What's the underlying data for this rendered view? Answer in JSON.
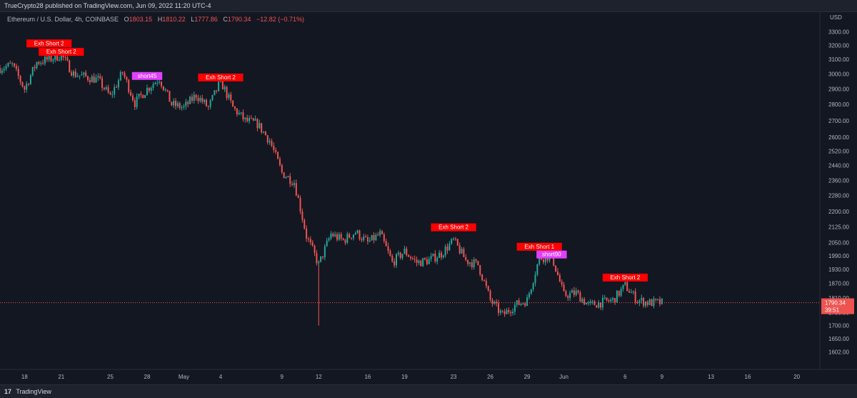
{
  "header": {
    "published_text": "TrueCrypto28 published on TradingView.com, Jun 09, 2022 11:20 UTC-4"
  },
  "symbol": {
    "name": "Ethereum / U.S. Dollar, 4h, COINBASE",
    "open_label": "O",
    "open_value": "1803.15",
    "high_label": "H",
    "high_value": "1810.22",
    "low_label": "L",
    "low_value": "1777.86",
    "close_label": "C",
    "close_value": "1790.34",
    "change": "−12.82 (−0.71%)"
  },
  "footer": {
    "brand": "TradingView",
    "logo_glyph": "17"
  },
  "colors": {
    "background": "#131722",
    "up": "#26a69a",
    "down": "#ef5350",
    "exh_label": "#ff0000",
    "short_label": "#e040fb",
    "price_line": "#ef5350"
  },
  "chart_data": {
    "type": "candlestick",
    "title": "Ethereum / U.S. Dollar, 4h, COINBASE",
    "currency_label": "USD",
    "y_scale": "log",
    "ylim": [
      1560,
      3350
    ],
    "y_ticks": [
      "3300.00",
      "3200.00",
      "3100.00",
      "3000.00",
      "2900.00",
      "2800.00",
      "2700.00",
      "2600.00",
      "2520.00",
      "2440.00",
      "2360.00",
      "2280.00",
      "2200.00",
      "2125.00",
      "2050.00",
      "1990.00",
      "1930.00",
      "1870.00",
      "1810.00",
      "1750.00",
      "1700.00",
      "1650.00",
      "1602.00"
    ],
    "x_ticks": [
      "18",
      "21",
      "25",
      "28",
      "May",
      "4",
      "9",
      "12",
      "16",
      "19",
      "23",
      "26",
      "29",
      "Jun",
      "6",
      "9",
      "13",
      "16",
      "20"
    ],
    "x_range": [
      "2022-04-16",
      "2022-06-22"
    ],
    "x_tick_dates": [
      "2022-04-18",
      "2022-04-21",
      "2022-04-25",
      "2022-04-28",
      "2022-05-01",
      "2022-05-04",
      "2022-05-09",
      "2022-05-12",
      "2022-05-16",
      "2022-05-19",
      "2022-05-23",
      "2022-05-26",
      "2022-05-29",
      "2022-06-01",
      "2022-06-06",
      "2022-06-09",
      "2022-06-13",
      "2022-06-16",
      "2022-06-20"
    ],
    "current_price": {
      "value": "1790.34",
      "countdown": "39:51"
    },
    "price_path": [
      {
        "date": "2022-04-16",
        "price": 3040
      },
      {
        "date": "2022-04-17",
        "price": 3060
      },
      {
        "date": "2022-04-18",
        "price": 2900
      },
      {
        "date": "2022-04-19",
        "price": 3080
      },
      {
        "date": "2022-04-20",
        "price": 3100
      },
      {
        "date": "2022-04-21",
        "price": 3130
      },
      {
        "date": "2022-04-22",
        "price": 3000
      },
      {
        "date": "2022-04-23",
        "price": 2980
      },
      {
        "date": "2022-04-24",
        "price": 2960
      },
      {
        "date": "2022-04-25",
        "price": 2850
      },
      {
        "date": "2022-04-26",
        "price": 3010
      },
      {
        "date": "2022-04-27",
        "price": 2810
      },
      {
        "date": "2022-04-28",
        "price": 2900
      },
      {
        "date": "2022-04-29",
        "price": 2970
      },
      {
        "date": "2022-04-30",
        "price": 2800
      },
      {
        "date": "2022-05-01",
        "price": 2780
      },
      {
        "date": "2022-05-02",
        "price": 2860
      },
      {
        "date": "2022-05-03",
        "price": 2780
      },
      {
        "date": "2022-05-04",
        "price": 2950
      },
      {
        "date": "2022-05-05",
        "price": 2780
      },
      {
        "date": "2022-05-06",
        "price": 2700
      },
      {
        "date": "2022-05-07",
        "price": 2680
      },
      {
        "date": "2022-05-08",
        "price": 2580
      },
      {
        "date": "2022-05-09",
        "price": 2400
      },
      {
        "date": "2022-05-10",
        "price": 2350
      },
      {
        "date": "2022-05-11",
        "price": 2080
      },
      {
        "date": "2022-05-12",
        "price": 1950
      },
      {
        "date": "2022-05-13",
        "price": 2090
      },
      {
        "date": "2022-05-14",
        "price": 2060
      },
      {
        "date": "2022-05-15",
        "price": 2100
      },
      {
        "date": "2022-05-16",
        "price": 2050
      },
      {
        "date": "2022-05-17",
        "price": 2090
      },
      {
        "date": "2022-05-18",
        "price": 1960
      },
      {
        "date": "2022-05-19",
        "price": 2010
      },
      {
        "date": "2022-05-20",
        "price": 1960
      },
      {
        "date": "2022-05-21",
        "price": 1970
      },
      {
        "date": "2022-05-22",
        "price": 2000
      },
      {
        "date": "2022-05-23",
        "price": 2060
      },
      {
        "date": "2022-05-24",
        "price": 1970
      },
      {
        "date": "2022-05-25",
        "price": 1950
      },
      {
        "date": "2022-05-26",
        "price": 1800
      },
      {
        "date": "2022-05-27",
        "price": 1740
      },
      {
        "date": "2022-05-28",
        "price": 1780
      },
      {
        "date": "2022-05-29",
        "price": 1800
      },
      {
        "date": "2022-05-30",
        "price": 1980
      },
      {
        "date": "2022-05-31",
        "price": 1990
      },
      {
        "date": "2022-06-01",
        "price": 1820
      },
      {
        "date": "2022-06-02",
        "price": 1830
      },
      {
        "date": "2022-06-03",
        "price": 1780
      },
      {
        "date": "2022-06-04",
        "price": 1790
      },
      {
        "date": "2022-06-05",
        "price": 1800
      },
      {
        "date": "2022-06-06",
        "price": 1860
      },
      {
        "date": "2022-06-07",
        "price": 1800
      },
      {
        "date": "2022-06-08",
        "price": 1790
      },
      {
        "date": "2022-06-09",
        "price": 1790
      }
    ],
    "annotations": [
      {
        "text": "Exh Short 2",
        "date": "2022-04-20",
        "price": 3180,
        "style": "exh"
      },
      {
        "text": "Exh Short 2",
        "date": "2022-04-21",
        "price": 3120,
        "style": "exh"
      },
      {
        "text": "short45",
        "date": "2022-04-28",
        "price": 2955,
        "style": "short"
      },
      {
        "text": "Exh Short 2",
        "date": "2022-05-04",
        "price": 2945,
        "style": "exh"
      },
      {
        "text": "Exh Short 2",
        "date": "2022-05-23",
        "price": 2100,
        "style": "exh"
      },
      {
        "text": "Exh Short 1",
        "date": "2022-05-30",
        "price": 2010,
        "style": "exh"
      },
      {
        "text": "short90",
        "date": "2022-05-31",
        "price": 1975,
        "style": "short"
      },
      {
        "text": "Exh Short 2",
        "date": "2022-06-06",
        "price": 1875,
        "style": "exh"
      }
    ]
  }
}
